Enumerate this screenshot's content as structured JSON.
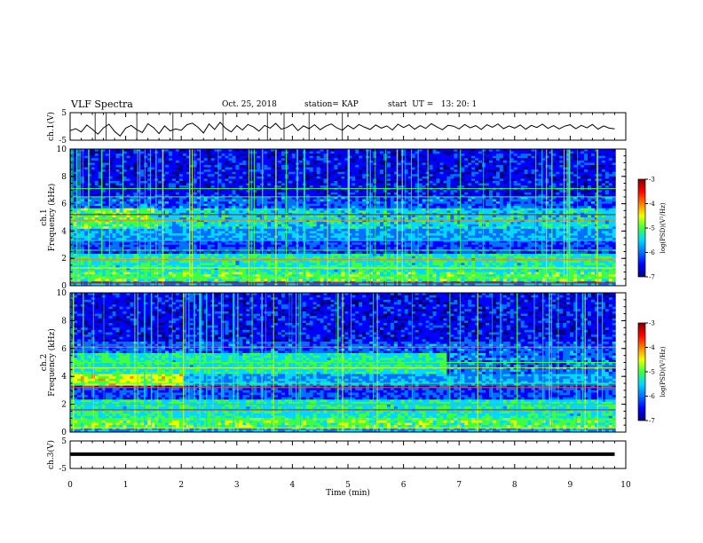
{
  "header": {
    "title": "VLF Spectra",
    "date": "Oct. 25, 2018",
    "station": "station= KAP",
    "start": "start  UT =   13: 20: 1"
  },
  "chart_data": [
    {
      "type": "line",
      "panel": "ch1-waveform",
      "ylabel": "ch.1(V)",
      "ylim": [
        -5,
        5
      ],
      "yticks": [
        "5",
        "-5"
      ],
      "x": [
        0,
        0.1,
        0.2,
        0.3,
        0.4,
        0.5,
        0.6,
        0.7,
        0.8,
        0.9,
        1.0,
        1.1,
        1.2,
        1.3,
        1.4,
        1.5,
        1.6,
        1.7,
        1.8,
        1.9,
        2.0,
        2.1,
        2.2,
        2.3,
        2.4,
        2.5,
        2.6,
        2.7,
        2.8,
        2.9,
        3.0,
        3.1,
        3.2,
        3.3,
        3.4,
        3.5,
        3.6,
        3.7,
        3.8,
        3.9,
        4.0,
        4.1,
        4.2,
        4.3,
        4.4,
        4.5,
        4.6,
        4.7,
        4.8,
        4.9,
        5.0,
        5.1,
        5.2,
        5.3,
        5.4,
        5.5,
        5.6,
        5.7,
        5.8,
        5.9,
        6.0,
        6.1,
        6.2,
        6.3,
        6.4,
        6.5,
        6.6,
        6.7,
        6.8,
        6.9,
        7.0,
        7.1,
        7.2,
        7.3,
        7.4,
        7.5,
        7.6,
        7.7,
        7.8,
        7.9,
        8.0,
        8.1,
        8.2,
        8.3,
        8.4,
        8.5,
        8.6,
        8.7,
        8.8,
        8.9,
        9.0,
        9.1,
        9.2,
        9.3,
        9.4,
        9.5,
        9.6,
        9.7,
        9.8
      ],
      "values": [
        -1.5,
        -0.8,
        -2.0,
        0.5,
        -1.0,
        -2.8,
        -0.5,
        0.8,
        -1.8,
        -3.5,
        -0.6,
        0.4,
        -1.2,
        -2.2,
        1.0,
        -0.4,
        -2.6,
        0.2,
        -1.6,
        -0.9,
        -1.4,
        0.6,
        1.2,
        -0.3,
        -2.4,
        0.9,
        -1.1,
        1.5,
        -0.7,
        -2.0,
        0.3,
        -1.3,
        0.7,
        -0.2,
        -1.7,
        0.4,
        -0.6,
        1.1,
        -1.0,
        -0.4,
        0.8,
        -1.5,
        0.2,
        -0.8,
        0.6,
        -1.2,
        0.1,
        0.9,
        -0.5,
        -1.4,
        0.4,
        -0.9,
        0.7,
        -0.3,
        -1.1,
        0.5,
        -0.6,
        0.2,
        -1.3,
        0.8,
        -0.4,
        0.6,
        -1.0,
        0.3,
        -0.7,
        1.0,
        -0.2,
        -1.2,
        0.4,
        0.1,
        -0.9,
        0.7,
        -0.5,
        0.3,
        -1.1,
        0.6,
        -0.3,
        0.9,
        -0.8,
        0.2,
        -0.6,
        0.5,
        -1.0,
        0.4,
        -0.4,
        0.8,
        -0.7,
        0.3,
        -0.9,
        0.1,
        0.6,
        -0.8,
        0.4,
        -0.5,
        0.7,
        -1.0,
        0.2,
        -0.6,
        -0.9
      ]
    },
    {
      "type": "heatmap",
      "panel": "ch1-spectrogram",
      "ylabel": "ch.1 Frequency (kHz)",
      "ylim": [
        0,
        10
      ],
      "yticks": [
        "0",
        "2",
        "4",
        "6",
        "8",
        "10"
      ],
      "colorbar": {
        "label": "log(PSD)(V²/Hz)",
        "range": [
          -7,
          -3
        ],
        "ticks": [
          "-3",
          "-4",
          "-5",
          "-6",
          "-7"
        ]
      }
    },
    {
      "type": "heatmap",
      "panel": "ch2-spectrogram",
      "ylabel": "ch.2 Frequency (kHz)",
      "ylim": [
        0,
        10
      ],
      "yticks": [
        "0",
        "2",
        "4",
        "6",
        "8",
        "10"
      ],
      "colorbar": {
        "label": "log(PSD)(V²/Hz)",
        "range": [
          -7,
          -3
        ],
        "ticks": [
          "-3",
          "-4",
          "-5",
          "-6",
          "-7"
        ]
      }
    },
    {
      "type": "line",
      "panel": "ch3-waveform",
      "ylabel": "ch.3(V)",
      "ylim": [
        -5,
        5
      ],
      "yticks": [
        "5",
        "-5"
      ],
      "x": [
        0,
        9.8
      ],
      "values": [
        0.2,
        0.2
      ]
    }
  ],
  "xaxis": {
    "label": "Time (min)",
    "xlim": [
      0,
      10
    ],
    "ticks": [
      "0",
      "1",
      "2",
      "3",
      "4",
      "5",
      "6",
      "7",
      "8",
      "9",
      "10"
    ]
  },
  "colormap": [
    "#00007f",
    "#0000ff",
    "#0070ff",
    "#00d8ff",
    "#40ff40",
    "#f0ff00",
    "#ff8000",
    "#ff0000",
    "#7f0000"
  ]
}
